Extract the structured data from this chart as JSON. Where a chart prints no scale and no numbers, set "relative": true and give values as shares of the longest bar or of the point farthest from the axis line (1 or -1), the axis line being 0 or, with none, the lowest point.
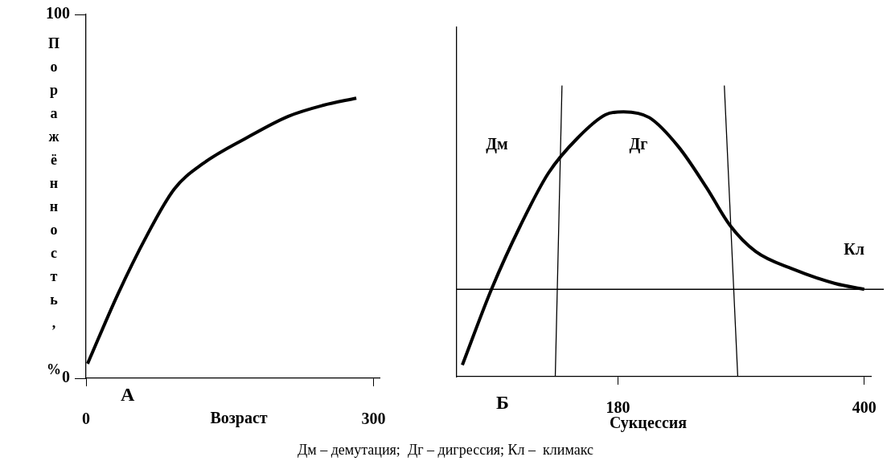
{
  "chart_data": [
    {
      "type": "line",
      "xlabel": "Возраст",
      "ylabel": "Поражённость, %",
      "xlim": [
        0,
        307
      ],
      "xticks": [
        0,
        300
      ],
      "ylim": [
        0,
        100
      ],
      "yticks": [
        0,
        100
      ],
      "grid": false,
      "legend": false,
      "marker": "none",
      "line_style": "solid",
      "x": [
        1.6,
        33,
        63,
        92,
        122,
        167,
        211,
        247,
        282
      ],
      "series": [
        {
          "color": "#000000",
          "values": [
            4,
            23,
            39,
            52,
            59,
            66,
            72,
            75,
            77
          ]
        }
      ],
      "annotations": [
        "А"
      ]
    },
    {
      "type": "line",
      "xlabel": "Сукцессия",
      "xlim": [
        36,
        406
      ],
      "xticks": [
        180,
        400
      ],
      "relative": true,
      "grid": false,
      "legend": false,
      "marker": "none",
      "line_style": "solid",
      "series": [
        {
          "color": "#000000",
          "x": [
            41,
            67,
            93,
            118,
            144,
            169,
            185,
            208,
            234,
            259,
            280,
            303,
            336,
            374,
            400
          ],
          "values": [
            0.04,
            0.3,
            0.52,
            0.7,
            0.82,
            0.9,
            0.91,
            0.89,
            0.79,
            0.65,
            0.52,
            0.43,
            0.37,
            0.32,
            0.3
          ]
        },
        {
          "color": "#000000",
          "x": [
            124,
            130
          ],
          "values": [
            0,
            1
          ]
        },
        {
          "color": "#000000",
          "x": [
            287,
            275
          ],
          "values": [
            0,
            1
          ]
        }
      ],
      "ref_lines": [
        {
          "axis": "y",
          "value": 0.3,
          "color": "#000000"
        }
      ],
      "annotations": [
        "Б",
        "Дм",
        "Дг",
        "Кл",
        "Дм – демутация;  Дг – дигрессия; Кл –  климакс"
      ]
    }
  ]
}
